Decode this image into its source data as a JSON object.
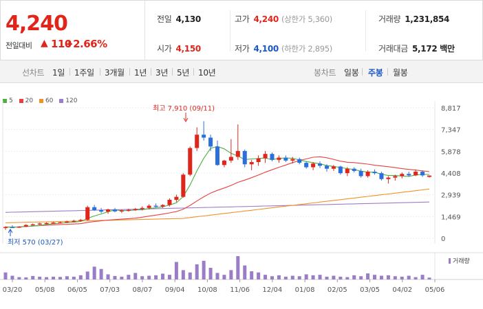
{
  "summary": {
    "price": "4,240",
    "change_label": "전일대비",
    "change_arrow": "▲",
    "change_value": "110",
    "change_pct": "+2.66%"
  },
  "stats": {
    "prev_close": {
      "label": "전일",
      "value": "4,130"
    },
    "high": {
      "label": "고가",
      "value": "4,240",
      "sub": "(상한가 5,360)"
    },
    "volume": {
      "label": "거래량",
      "value": "1,231,854"
    },
    "open": {
      "label": "시가",
      "value": "4,150"
    },
    "low": {
      "label": "저가",
      "value": "4,100",
      "sub": "(하한가 2,895)"
    },
    "amount": {
      "label": "거래대금",
      "value": "5,172 백만"
    }
  },
  "tabs": {
    "line_group": "선차트",
    "line_items": [
      "1일",
      "1주일",
      "3개월",
      "1년",
      "3년",
      "5년",
      "10년"
    ],
    "candle_group": "봉차트",
    "candle_items": [
      "일봉",
      "주봉",
      "월봉"
    ],
    "active": "주봉"
  },
  "colors": {
    "up": "#e0251b",
    "down": "#2a6fdb",
    "ma5": "#4caf3e",
    "ma20": "#e84040",
    "ma60": "#f0912a",
    "ma120": "#9b7cc7",
    "volume": "#9b7cc7"
  },
  "legend": [
    {
      "label": "5",
      "color": "#4caf3e"
    },
    {
      "label": "20",
      "color": "#e84040"
    },
    {
      "label": "60",
      "color": "#f0912a"
    },
    {
      "label": "120",
      "color": "#9b7cc7"
    }
  ],
  "volume_label": "거래량",
  "chart_data": {
    "type": "candlestick",
    "y_ticks": [
      "8,817",
      "7,347",
      "5,878",
      "4,408",
      "2,939",
      "1,469",
      "0"
    ],
    "y_tick_values": [
      8817,
      7347,
      5878,
      4408,
      2939,
      1469,
      0
    ],
    "ylim": [
      0,
      8817
    ],
    "x_ticks": [
      "03/20",
      "05/08",
      "06/05",
      "07/03",
      "08/07",
      "09/04",
      "10/08",
      "11/06",
      "12/04",
      "01/08",
      "02/05",
      "03/05",
      "04/02",
      "05/06"
    ],
    "high_annotation": "최고 7,910 (09/11)",
    "low_annotation": "최저 570 (03/27)",
    "candles": [
      [
        700,
        820,
        570,
        760
      ],
      [
        760,
        880,
        700,
        740
      ],
      [
        740,
        820,
        700,
        790
      ],
      [
        790,
        950,
        750,
        900
      ],
      [
        900,
        1000,
        860,
        940
      ],
      [
        940,
        1050,
        900,
        1000
      ],
      [
        1000,
        1080,
        950,
        1030
      ],
      [
        1030,
        1100,
        980,
        1060
      ],
      [
        1060,
        1120,
        1000,
        1080
      ],
      [
        1080,
        1180,
        1040,
        1130
      ],
      [
        1130,
        1250,
        1080,
        1180
      ],
      [
        1180,
        1300,
        1120,
        1240
      ],
      [
        1240,
        2200,
        1200,
        2100
      ],
      [
        2100,
        2250,
        1850,
        1900
      ],
      [
        1900,
        2050,
        1700,
        1800
      ],
      [
        1800,
        2000,
        1650,
        1950
      ],
      [
        1950,
        2050,
        1750,
        1820
      ],
      [
        1820,
        1950,
        1700,
        1880
      ],
      [
        1880,
        2000,
        1800,
        1920
      ],
      [
        1920,
        2050,
        1850,
        1980
      ],
      [
        1980,
        2150,
        1880,
        2050
      ],
      [
        2050,
        2300,
        1950,
        2200
      ],
      [
        2200,
        2350,
        2100,
        2150
      ],
      [
        2150,
        2300,
        2050,
        2250
      ],
      [
        2250,
        2700,
        2150,
        2600
      ],
      [
        2600,
        2950,
        2450,
        2800
      ],
      [
        2800,
        4400,
        2750,
        4300
      ],
      [
        4300,
        6200,
        4200,
        6100
      ],
      [
        6100,
        7500,
        5900,
        7000
      ],
      [
        7000,
        7910,
        6600,
        6800
      ],
      [
        6800,
        7000,
        5900,
        6200
      ],
      [
        6200,
        6600,
        4900,
        4950
      ],
      [
        4950,
        5300,
        4800,
        5250
      ],
      [
        5250,
        6700,
        5100,
        5500
      ],
      [
        5500,
        7700,
        5300,
        5900
      ],
      [
        5900,
        6000,
        4800,
        5000
      ],
      [
        5000,
        5300,
        4600,
        5150
      ],
      [
        5150,
        5600,
        4900,
        5400
      ],
      [
        5400,
        5900,
        5100,
        5700
      ],
      [
        5700,
        5800,
        5200,
        5300
      ],
      [
        5300,
        5600,
        5100,
        5450
      ],
      [
        5450,
        5600,
        5150,
        5250
      ],
      [
        5250,
        5500,
        5050,
        5350
      ],
      [
        5350,
        5450,
        5000,
        5100
      ],
      [
        5100,
        5200,
        4700,
        4800
      ],
      [
        4800,
        5150,
        4600,
        5050
      ],
      [
        5050,
        5200,
        4750,
        4900
      ],
      [
        4900,
        5000,
        4500,
        4700
      ],
      [
        4700,
        4950,
        4550,
        4850
      ],
      [
        4850,
        4900,
        4300,
        4400
      ],
      [
        4400,
        4800,
        4200,
        4700
      ],
      [
        4700,
        4800,
        4450,
        4550
      ],
      [
        4550,
        4700,
        4100,
        4200
      ],
      [
        4200,
        4600,
        4100,
        4500
      ],
      [
        4500,
        4650,
        4300,
        4400
      ],
      [
        4400,
        4500,
        3900,
        4000
      ],
      [
        4000,
        4200,
        3700,
        4100
      ],
      [
        4100,
        4300,
        3900,
        4200
      ],
      [
        4200,
        4450,
        4050,
        4350
      ],
      [
        4350,
        4500,
        4150,
        4250
      ],
      [
        4250,
        4650,
        4200,
        4500
      ],
      [
        4500,
        4600,
        4150,
        4250
      ],
      [
        4150,
        4240,
        4100,
        4240
      ]
    ],
    "volume": [
      30,
      16,
      10,
      9,
      15,
      12,
      10,
      12,
      11,
      14,
      12,
      18,
      34,
      55,
      45,
      22,
      15,
      12,
      20,
      28,
      14,
      16,
      18,
      25,
      20,
      75,
      40,
      30,
      65,
      80,
      50,
      28,
      20,
      40,
      100,
      60,
      35,
      30,
      20,
      14,
      18,
      12,
      16,
      14,
      22,
      18,
      20,
      12,
      16,
      12,
      10,
      18,
      14,
      26,
      20,
      16,
      18,
      14,
      12,
      16,
      10,
      20,
      8
    ]
  }
}
